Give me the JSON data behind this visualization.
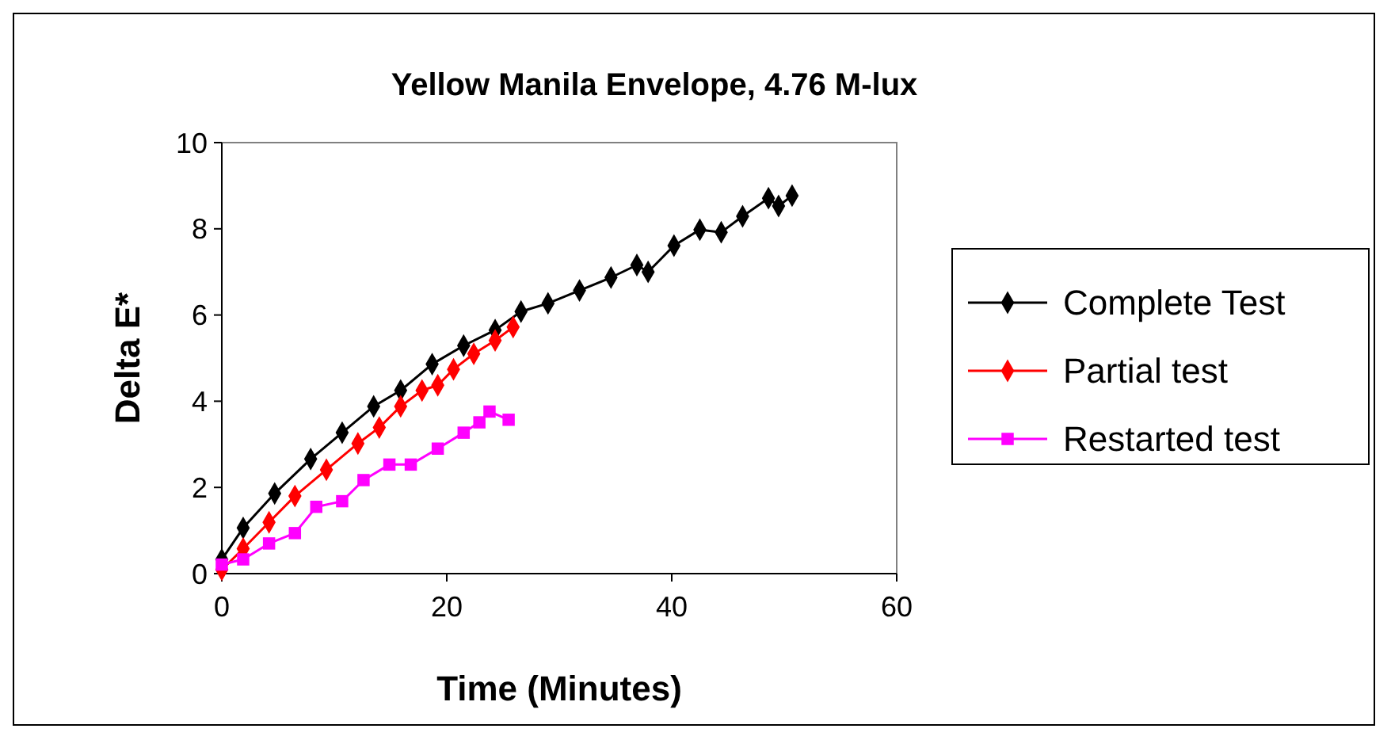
{
  "chart_data": {
    "type": "line",
    "title": "Yellow Manila Envelope, 4.76 M-lux",
    "xlabel": "Time (Minutes)",
    "ylabel": "Delta E*",
    "xlim": [
      0,
      60
    ],
    "xticks": [
      0,
      20,
      40,
      60
    ],
    "ylim": [
      0,
      10
    ],
    "yticks": [
      0,
      2,
      4,
      6,
      8,
      10
    ],
    "grid": false,
    "legend": "right",
    "line_style": "solid",
    "series": [
      {
        "name": "Complete Test",
        "color": "#000000",
        "marker": "diamond",
        "x": [
          0,
          1.9,
          4.7,
          7.9,
          10.7,
          13.5,
          15.9,
          18.7,
          21.5,
          24.3,
          26.6,
          29,
          31.8,
          34.6,
          36.9,
          37.9,
          40.2,
          42.5,
          44.4,
          46.3,
          48.6,
          49.5,
          50.7
        ],
        "values": [
          0.33,
          1.06,
          1.86,
          2.66,
          3.27,
          3.88,
          4.25,
          4.86,
          5.29,
          5.65,
          6.08,
          6.27,
          6.57,
          6.87,
          7.16,
          7,
          7.61,
          7.98,
          7.92,
          8.29,
          8.71,
          8.53,
          8.77
        ]
      },
      {
        "name": "Partial test",
        "color": "#ff0000",
        "marker": "diamond",
        "x": [
          0,
          1.9,
          4.2,
          6.5,
          9.3,
          12.1,
          14,
          15.9,
          17.8,
          19.2,
          20.6,
          22.4,
          24.3,
          25.9
        ],
        "values": [
          0.09,
          0.58,
          1.19,
          1.8,
          2.41,
          3.02,
          3.39,
          3.88,
          4.25,
          4.37,
          4.74,
          5.1,
          5.41,
          5.72
        ]
      },
      {
        "name": "Restarted test",
        "color": "#ff00ff",
        "marker": "square",
        "x": [
          0,
          1.9,
          4.2,
          6.5,
          8.4,
          10.7,
          12.6,
          14.9,
          16.8,
          19.2,
          21.5,
          22.9,
          23.8,
          25.5
        ],
        "values": [
          0.21,
          0.33,
          0.7,
          0.94,
          1.55,
          1.68,
          2.17,
          2.53,
          2.53,
          2.9,
          3.27,
          3.51,
          3.76,
          3.57
        ]
      }
    ]
  }
}
